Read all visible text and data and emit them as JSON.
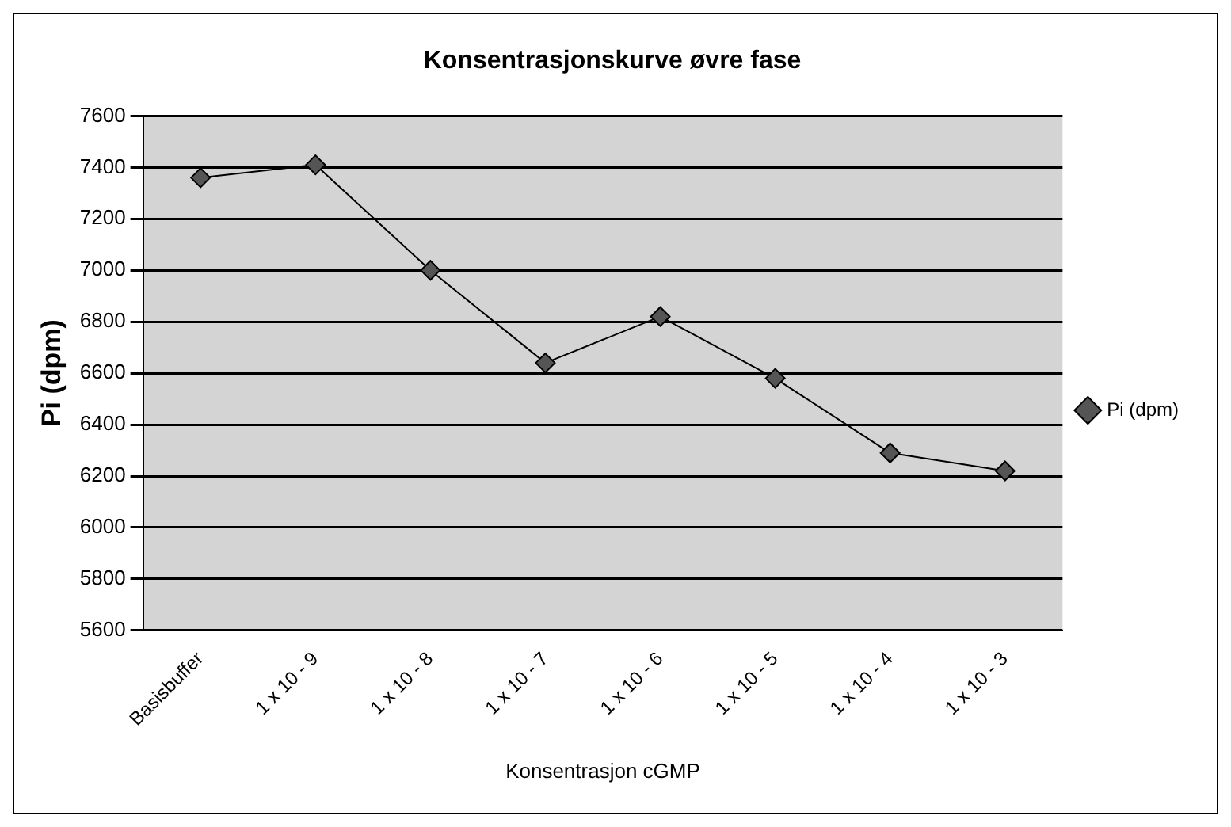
{
  "chart_data": {
    "type": "line",
    "title": "Konsentrasjonskurve øvre fase",
    "xlabel": "Konsentrasjon cGMP",
    "ylabel": "Pi (dpm)",
    "categories": [
      "Basisbuffer",
      "1 x 10 - 9",
      "1 x 10 - 8",
      "1 x 10 - 7",
      "1 x 10 - 6",
      "1 x 10 - 5",
      "1 x 10 - 4",
      "1 x 10 - 3"
    ],
    "series": [
      {
        "name": "Pi (dpm)",
        "color": "#000000",
        "values": [
          7360,
          7410,
          7000,
          6640,
          6820,
          6580,
          6290,
          6220
        ]
      }
    ],
    "ylim": [
      5600,
      7600
    ],
    "yticks": [
      5600,
      5800,
      6000,
      6200,
      6400,
      6600,
      6800,
      7000,
      7200,
      7400,
      7600
    ],
    "grid": "y",
    "legend": "right",
    "marker": "diamond",
    "line_style": "solid"
  }
}
